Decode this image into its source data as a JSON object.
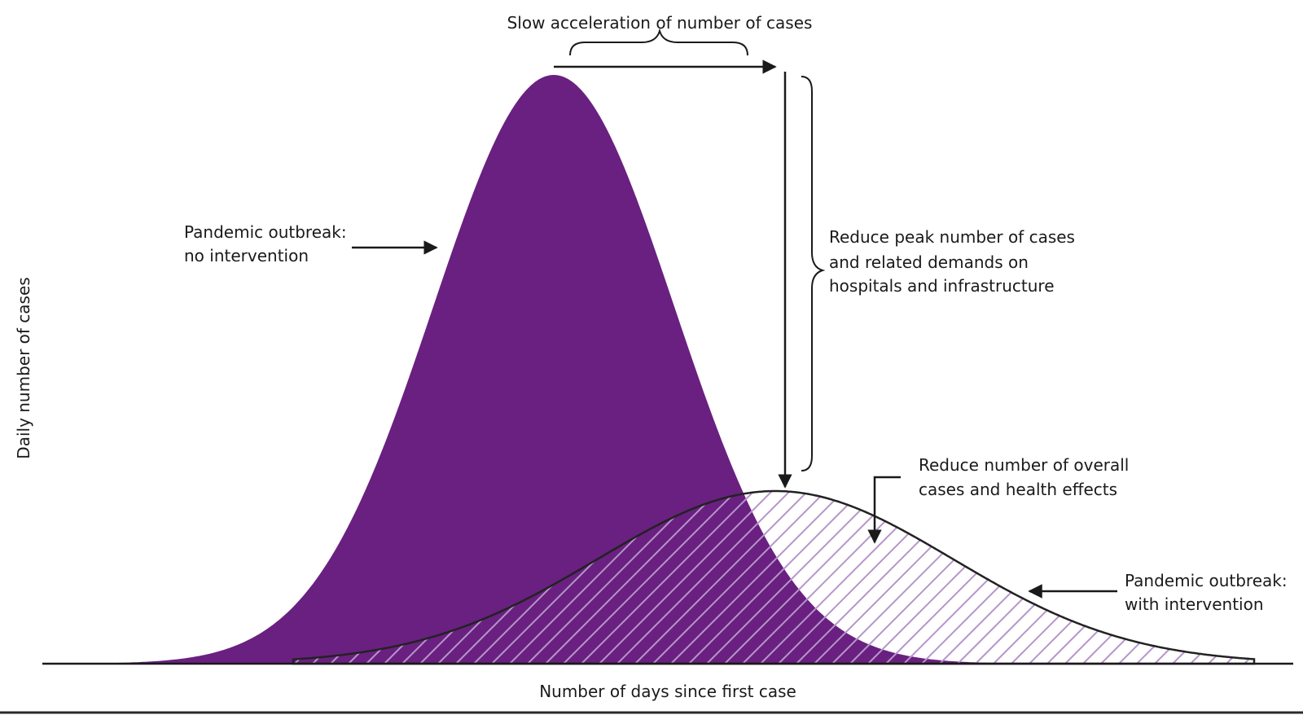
{
  "colors": {
    "no_intervention_fill": "#6a2080",
    "with_intervention_hatch": "#b596c9",
    "outline": "#222222",
    "axis": "#1a1a1a",
    "background": "#ffffff"
  },
  "axes": {
    "x_label": "Number of days since first case",
    "y_label": "Daily number of cases"
  },
  "annotations": {
    "slow_acceleration": "Slow acceleration of number of cases",
    "no_intervention_line1": "Pandemic outbreak:",
    "no_intervention_line2": "no intervention",
    "reduce_peak_line1": "Reduce peak number of cases",
    "reduce_peak_line2": "and related demands on",
    "reduce_peak_line3": "hospitals and infrastructure",
    "reduce_overall_line1": "Reduce number of overall",
    "reduce_overall_line2": "cases and health effects",
    "with_intervention_line1": "Pandemic outbreak:",
    "with_intervention_line2": "with intervention"
  },
  "chart_data": {
    "type": "area",
    "series": [
      {
        "name": "Pandemic outbreak: no intervention",
        "shape": "tall narrow bell curve, peak earlier",
        "style": "solid purple fill"
      },
      {
        "name": "Pandemic outbreak: with intervention",
        "shape": "low wide bell curve, peak later",
        "style": "hatched outline"
      }
    ],
    "grid": false
  }
}
